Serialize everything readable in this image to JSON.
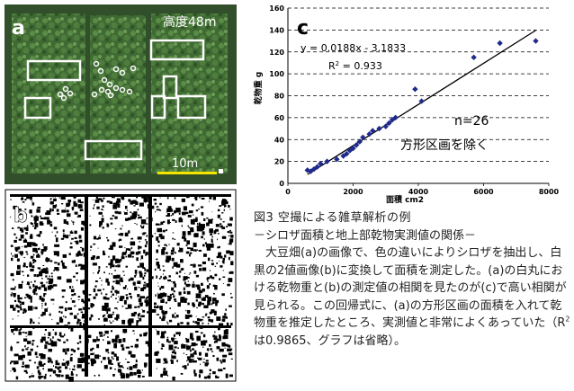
{
  "panel_a": {
    "label": "a",
    "altitude": "高度48m",
    "scale_label": "10m"
  },
  "panel_b": {
    "label": "b"
  },
  "chart_data": {
    "type": "scatter",
    "panel_label": "c",
    "xlabel": "面積  cm2",
    "ylabel": "乾物重  g",
    "xlim": [
      0,
      8000
    ],
    "ylim": [
      0,
      160
    ],
    "xticks": [
      0,
      2000,
      4000,
      6000,
      8000
    ],
    "yticks": [
      0,
      20,
      40,
      60,
      80,
      100,
      120,
      140,
      160
    ],
    "grid": "horizontal dashed",
    "equation": "y = 0.0188x - 3.1833",
    "r2_prefix": "R",
    "r2_sup": "2",
    "r2_value": " = 0.933",
    "n_label": "n=26",
    "note": "方形区画を除く",
    "trendline": {
      "slope": 0.0188,
      "intercept": -3.1833,
      "x_range": [
        600,
        7600
      ]
    },
    "points": [
      [
        600,
        12
      ],
      [
        700,
        11
      ],
      [
        800,
        13
      ],
      [
        900,
        15
      ],
      [
        1000,
        18
      ],
      [
        1200,
        20
      ],
      [
        1500,
        22
      ],
      [
        1700,
        25
      ],
      [
        1800,
        27
      ],
      [
        1900,
        30
      ],
      [
        2000,
        32
      ],
      [
        2100,
        35
      ],
      [
        2200,
        38
      ],
      [
        2300,
        42
      ],
      [
        2500,
        45
      ],
      [
        2600,
        48
      ],
      [
        2800,
        50
      ],
      [
        3000,
        52
      ],
      [
        3100,
        55
      ],
      [
        3200,
        58
      ],
      [
        3300,
        60
      ],
      [
        3900,
        86
      ],
      [
        4100,
        75
      ],
      [
        5700,
        115
      ],
      [
        6500,
        128
      ],
      [
        7600,
        130
      ]
    ]
  },
  "caption": {
    "title": "図3  空撮による雑草解析の例",
    "subtitle": "－シロザ面積と地上部乾物実測値の関係－",
    "body_part1": "大豆畑(a)の画像で、色の違いによりシロザを抽出し、白黒の2値画像(b)に変換して面積を測定した。(a)の白丸における乾物重と(b)の測定値の相関を見たのが(c)で高い相関が見られる。この回帰式に、(a)の方形区画の面積を入れて乾物重を推定したところ、実測値と非常によくあっていた（R",
    "body_sup": "2",
    "body_part2": "は0.9865、グラフは省略）。"
  },
  "colors": {
    "point": "#1f2a8c",
    "trendline": "#000000",
    "photo_dark": "#2d4a25",
    "photo_light": "#5f8d48"
  }
}
